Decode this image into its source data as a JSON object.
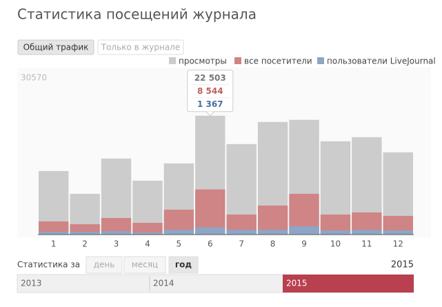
{
  "header": {
    "title": "Статистика посещений журнала"
  },
  "tabs": [
    "Общий трафик",
    "Только в журнале"
  ],
  "chart_data": {
    "type": "bar",
    "categories": [
      "1",
      "2",
      "3",
      "4",
      "5",
      "6",
      "7",
      "8",
      "9",
      "10",
      "11",
      "12"
    ],
    "series": [
      {
        "name": "просмотры",
        "color": "#cccccc",
        "label_color": "#777777",
        "values": [
          12036,
          7719,
          14391,
          10205,
          13476,
          22503,
          17139,
          21325,
          21718,
          17662,
          18447,
          15569
        ],
        "value_labels": [
          null,
          null,
          null,
          null,
          null,
          "22 503",
          null,
          null,
          null,
          null,
          null,
          null
        ]
      },
      {
        "name": "все посетители",
        "color": "#cf8485",
        "label_color": "#c0605f",
        "values": [
          2486,
          1962,
          3140,
          2224,
          4710,
          8544,
          3794,
          5495,
          7719,
          3794,
          4187,
          3532
        ],
        "value_labels": [
          null,
          null,
          null,
          null,
          null,
          "8 544",
          null,
          null,
          null,
          null,
          null,
          null
        ]
      },
      {
        "name": "пользователи LiveJournal",
        "color": "#8ea5c6",
        "label_color": "#4a6fa0",
        "values": [
          523,
          523,
          654,
          392,
          916,
          1367,
          916,
          916,
          1570,
          785,
          916,
          785
        ],
        "value_labels": [
          null,
          null,
          null,
          null,
          null,
          "1 367",
          null,
          null,
          null,
          null,
          null,
          null
        ]
      }
    ],
    "ylim": [
      0,
      30570
    ],
    "yticks": [
      30570
    ],
    "legend": "top-right"
  },
  "period": {
    "label": "Статистика за",
    "buttons": [
      "день",
      "месяц",
      "год"
    ],
    "selected": "2015"
  },
  "timeline": [
    "2013",
    "2014",
    "2015"
  ]
}
